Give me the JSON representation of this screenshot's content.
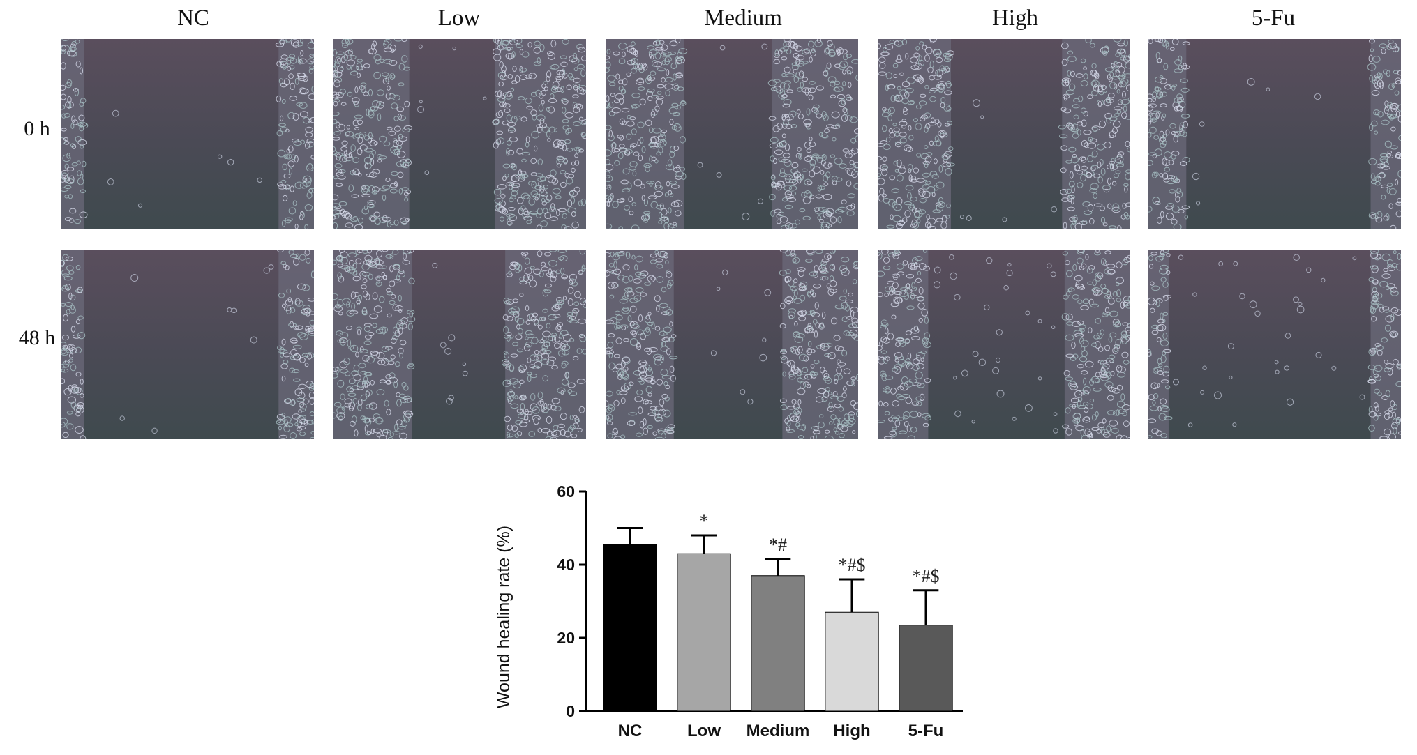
{
  "figure": {
    "columns": [
      "NC",
      "Low",
      "Medium",
      "High",
      "5-Fu"
    ],
    "rows": [
      "0 h",
      "48 h"
    ]
  },
  "chart_data": {
    "type": "bar",
    "ylabel": "Wound healing rate (%)",
    "categories": [
      "NC",
      "Low",
      "Medium",
      "High",
      "5-Fu"
    ],
    "values": [
      45.5,
      43,
      37,
      27,
      23.5
    ],
    "errors": [
      4.5,
      5,
      4.5,
      9,
      9.5
    ],
    "annotations": [
      "",
      "*",
      "*#",
      "*#$",
      "*#$"
    ],
    "colors": [
      "#000000",
      "#a6a6a6",
      "#808080",
      "#d9d9d9",
      "#595959"
    ],
    "ylim": [
      0,
      60
    ],
    "yticks": [
      0,
      20,
      40,
      60
    ],
    "grid": false
  }
}
